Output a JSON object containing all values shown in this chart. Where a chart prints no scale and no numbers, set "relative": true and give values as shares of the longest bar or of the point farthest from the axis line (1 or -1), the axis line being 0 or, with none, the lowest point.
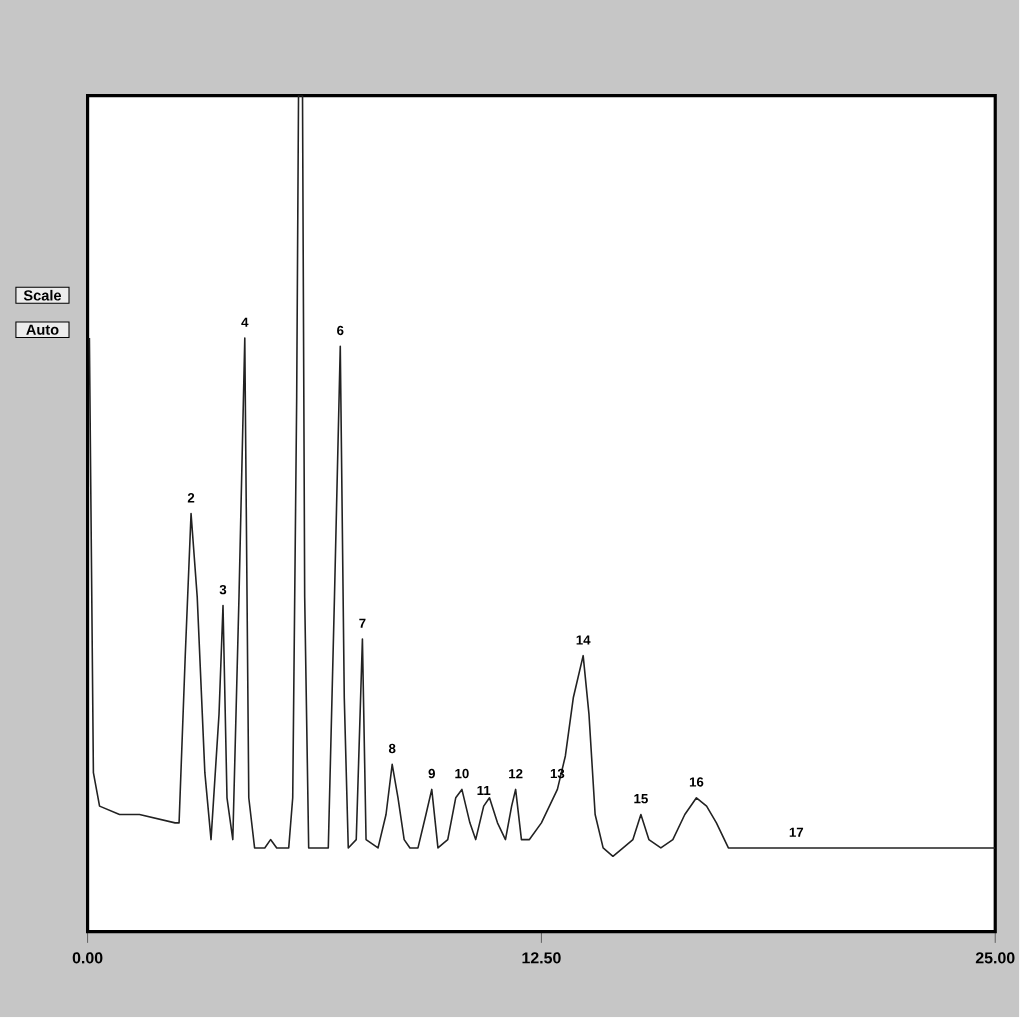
{
  "chart_data": {
    "type": "line",
    "relative": true,
    "xlim": [
      0,
      25
    ],
    "xticks": [
      {
        "value": 0,
        "label": "0.00"
      },
      {
        "value": 12.5,
        "label": "12.50"
      },
      {
        "value": 25,
        "label": "25.00"
      }
    ],
    "tick_labels": "x",
    "grid": false,
    "marker": "none",
    "line_style": "solid",
    "series": [
      {
        "color": "#222222",
        "x": [
          0.05,
          0.16,
          0.33,
          0.88,
          1.43,
          2.41,
          2.52,
          2.69,
          2.85,
          3.02,
          3.23,
          3.4,
          3.62,
          3.73,
          3.84,
          4.0,
          4.17,
          4.33,
          4.44,
          4.6,
          4.88,
          5.04,
          5.21,
          5.54,
          5.65,
          5.76,
          5.81,
          5.92,
          5.98,
          6.09,
          6.63,
          6.8,
          6.96,
          7.07,
          7.18,
          7.4,
          7.57,
          7.67,
          8.0,
          8.22,
          8.39,
          8.55,
          8.72,
          8.88,
          9.1,
          9.32,
          9.48,
          9.65,
          9.92,
          10.14,
          10.31,
          10.53,
          10.69,
          10.91,
          11.07,
          11.29,
          11.51,
          11.68,
          11.79,
          11.95,
          12.17,
          12.5,
          12.72,
          12.94,
          13.16,
          13.38,
          13.65,
          13.81,
          13.98,
          14.2,
          14.47,
          14.75,
          15.02,
          15.24,
          15.46,
          15.79,
          16.12,
          16.45,
          16.77,
          17.05,
          17.32,
          17.65,
          17.98,
          18.42,
          19.52,
          20.34,
          21.16,
          22.26,
          23.35,
          24.45,
          25
        ],
        "values": [
          0.71,
          0.19,
          0.15,
          0.14,
          0.14,
          0.13,
          0.13,
          0.33,
          0.5,
          0.4,
          0.19,
          0.11,
          0.26,
          0.39,
          0.16,
          0.11,
          0.4,
          0.71,
          0.16,
          0.1,
          0.1,
          0.11,
          0.1,
          0.1,
          0.16,
          0.64,
          1,
          1,
          0.4,
          0.1,
          0.1,
          0.4,
          0.7,
          0.28,
          0.1,
          0.11,
          0.35,
          0.11,
          0.1,
          0.14,
          0.2,
          0.16,
          0.11,
          0.1,
          0.1,
          0.14,
          0.17,
          0.1,
          0.11,
          0.16,
          0.17,
          0.13,
          0.11,
          0.15,
          0.16,
          0.13,
          0.11,
          0.15,
          0.17,
          0.11,
          0.11,
          0.13,
          0.15,
          0.17,
          0.21,
          0.28,
          0.33,
          0.26,
          0.14,
          0.1,
          0.09,
          0.1,
          0.11,
          0.14,
          0.11,
          0.1,
          0.11,
          0.14,
          0.16,
          0.15,
          0.13,
          0.1,
          0.1,
          0.1,
          0.1,
          0.1,
          0.1,
          0.1,
          0.1,
          0.1,
          0.1
        ]
      }
    ],
    "annotations": [
      "Scale",
      "Auto",
      {
        "text": "2",
        "x": 2.85,
        "y": 0.5
      },
      {
        "text": "3",
        "x": 3.73,
        "y": 0.39
      },
      {
        "text": "4",
        "x": 4.33,
        "y": 0.71
      },
      {
        "text": "6",
        "x": 6.96,
        "y": 0.7
      },
      {
        "text": "7",
        "x": 7.57,
        "y": 0.35
      },
      {
        "text": "8",
        "x": 8.39,
        "y": 0.2
      },
      {
        "text": "9",
        "x": 9.48,
        "y": 0.17
      },
      {
        "text": "10",
        "x": 10.31,
        "y": 0.17
      },
      {
        "text": "11",
        "x": 10.91,
        "y": 0.15
      },
      {
        "text": "12",
        "x": 11.79,
        "y": 0.17
      },
      {
        "text": "13",
        "x": 12.94,
        "y": 0.17
      },
      {
        "text": "14",
        "x": 13.65,
        "y": 0.33
      },
      {
        "text": "15",
        "x": 15.24,
        "y": 0.14
      },
      {
        "text": "16",
        "x": 16.77,
        "y": 0.16
      },
      {
        "text": "17",
        "x": 19.52,
        "y": 0.1
      }
    ]
  }
}
